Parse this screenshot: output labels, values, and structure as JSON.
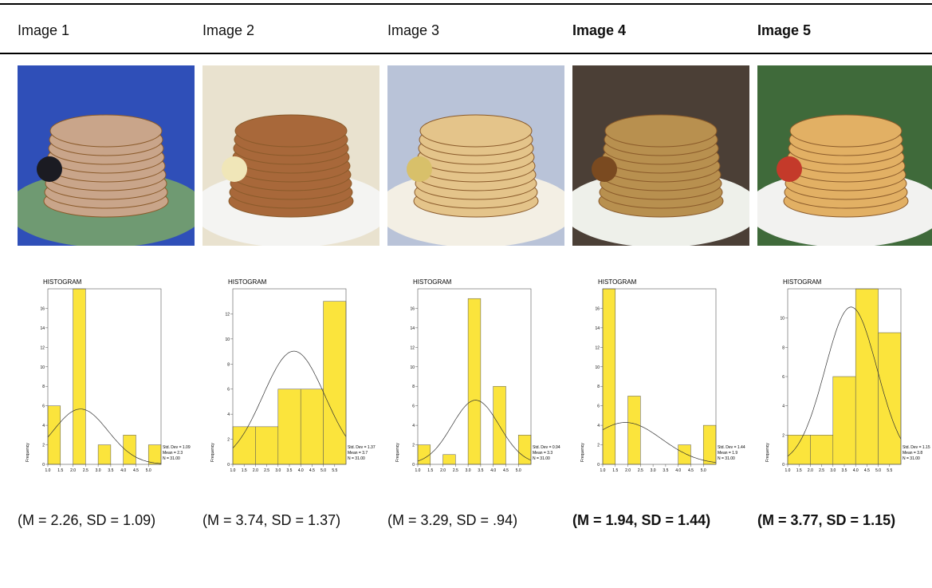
{
  "columns": [
    {
      "label": "Image 1",
      "bold": false,
      "caption": "(M = 2.26, SD = 1.09)",
      "histogram": {
        "type": "histogram",
        "title": "HISTOGRAM",
        "y_label": "Frequency",
        "color": "#fbe43c",
        "bins": [
          1.0,
          1.5,
          2.0,
          2.5,
          3.0,
          3.5,
          4.0,
          4.5,
          5.0,
          5.5
        ],
        "counts": [
          6,
          0,
          18,
          0,
          2,
          0,
          3,
          0,
          2
        ],
        "xlim": [
          1.0,
          5.5
        ],
        "ylim": [
          0,
          18
        ],
        "yticks": [
          0,
          2,
          4,
          6,
          8,
          10,
          12,
          14,
          16
        ],
        "xticks": [
          {
            "value": 1.0,
            "label": "1.0"
          },
          {
            "value": 1.5,
            "label": "1.5"
          },
          {
            "value": 2.0,
            "label": "2.0"
          },
          {
            "value": 2.5,
            "label": "2.5"
          },
          {
            "value": 3.0,
            "label": "3.0"
          },
          {
            "value": 3.5,
            "label": "3.5"
          },
          {
            "value": 4.0,
            "label": "4.0"
          },
          {
            "value": 4.5,
            "label": "4.5"
          },
          {
            "value": 5.0,
            "label": "5.0"
          }
        ],
        "stats": [
          {
            "value": 1.09,
            "label": "Std. Dev = 1.09"
          },
          {
            "value": 2.3,
            "label": "Mean = 2.3"
          },
          {
            "value": 31,
            "label": "N = 31.00"
          }
        ]
      }
    },
    {
      "label": "Image 2",
      "bold": false,
      "caption": "(M = 3.74, SD = 1.37)",
      "histogram": {
        "type": "histogram",
        "title": "HISTOGRAM",
        "y_label": "Frequency",
        "color": "#fbe43c",
        "bins": [
          1.0,
          2.0,
          3.0,
          4.0,
          5.0,
          6.0
        ],
        "counts": [
          3,
          3,
          6,
          6,
          13
        ],
        "xlim": [
          1.0,
          6.0
        ],
        "ylim": [
          0,
          14
        ],
        "yticks": [
          0,
          2,
          4,
          6,
          8,
          10,
          12
        ],
        "xticks": [
          {
            "value": 1.0,
            "label": "1.0"
          },
          {
            "value": 1.5,
            "label": "1.5"
          },
          {
            "value": 2.0,
            "label": "2.0"
          },
          {
            "value": 2.5,
            "label": "2.5"
          },
          {
            "value": 3.0,
            "label": "3.0"
          },
          {
            "value": 3.5,
            "label": "3.5"
          },
          {
            "value": 4.0,
            "label": "4.0"
          },
          {
            "value": 4.5,
            "label": "4.5"
          },
          {
            "value": 5.0,
            "label": "5.0"
          },
          {
            "value": 5.5,
            "label": "5.5"
          }
        ],
        "stats": [
          {
            "value": 1.37,
            "label": "Std. Dev = 1.37"
          },
          {
            "value": 3.7,
            "label": "Mean = 3.7"
          },
          {
            "value": 31,
            "label": "N = 31.00"
          }
        ]
      }
    },
    {
      "label": "Image 3",
      "bold": false,
      "caption": "(M = 3.29, SD = .94)",
      "histogram": {
        "type": "histogram",
        "title": "HISTOGRAM",
        "y_label": "Frequency",
        "color": "#fbe43c",
        "bins": [
          1.0,
          1.5,
          2.0,
          2.5,
          3.0,
          3.5,
          4.0,
          4.5,
          5.0,
          5.5
        ],
        "counts": [
          2,
          0,
          1,
          0,
          17,
          0,
          8,
          0,
          3
        ],
        "xlim": [
          1.0,
          5.5
        ],
        "ylim": [
          0,
          18
        ],
        "yticks": [
          0,
          2,
          4,
          6,
          8,
          10,
          12,
          14,
          16
        ],
        "xticks": [
          {
            "value": 1.0,
            "label": "1.0"
          },
          {
            "value": 1.5,
            "label": "1.5"
          },
          {
            "value": 2.0,
            "label": "2.0"
          },
          {
            "value": 2.5,
            "label": "2.5"
          },
          {
            "value": 3.0,
            "label": "3.0"
          },
          {
            "value": 3.5,
            "label": "3.5"
          },
          {
            "value": 4.0,
            "label": "4.0"
          },
          {
            "value": 4.5,
            "label": "4.5"
          },
          {
            "value": 5.0,
            "label": "5.0"
          }
        ],
        "stats": [
          {
            "value": 0.94,
            "label": "Std. Dev = 0.94"
          },
          {
            "value": 3.3,
            "label": "Mean = 3.3"
          },
          {
            "value": 31,
            "label": "N = 31.00"
          }
        ]
      }
    },
    {
      "label": "Image 4",
      "bold": true,
      "caption": "(M = 1.94, SD = 1.44)",
      "histogram": {
        "type": "histogram",
        "title": "HISTOGRAM",
        "y_label": "Frequency",
        "color": "#fbe43c",
        "bins": [
          1.0,
          1.5,
          2.0,
          2.5,
          3.0,
          3.5,
          4.0,
          4.5,
          5.0,
          5.5
        ],
        "counts": [
          18,
          0,
          7,
          0,
          0,
          0,
          2,
          0,
          4
        ],
        "xlim": [
          1.0,
          5.5
        ],
        "ylim": [
          0,
          18
        ],
        "yticks": [
          0,
          2,
          4,
          6,
          8,
          10,
          12,
          14,
          16
        ],
        "xticks": [
          {
            "value": 1.0,
            "label": "1.0"
          },
          {
            "value": 1.5,
            "label": "1.5"
          },
          {
            "value": 2.0,
            "label": "2.0"
          },
          {
            "value": 2.5,
            "label": "2.5"
          },
          {
            "value": 3.0,
            "label": "3.0"
          },
          {
            "value": 3.5,
            "label": "3.5"
          },
          {
            "value": 4.0,
            "label": "4.0"
          },
          {
            "value": 4.5,
            "label": "4.5"
          },
          {
            "value": 5.0,
            "label": "5.0"
          }
        ],
        "stats": [
          {
            "value": 1.44,
            "label": "Std. Dev = 1.44"
          },
          {
            "value": 1.9,
            "label": "Mean = 1.9"
          },
          {
            "value": 31,
            "label": "N = 31.00"
          }
        ]
      }
    },
    {
      "label": "Image 5",
      "bold": true,
      "caption": "(M = 3.77, SD = 1.15)",
      "histogram": {
        "type": "histogram",
        "title": "HISTOGRAM",
        "y_label": "Frequency",
        "color": "#fbe43c",
        "bins": [
          1.0,
          2.0,
          3.0,
          4.0,
          5.0,
          6.0
        ],
        "counts": [
          2,
          2,
          6,
          12,
          9
        ],
        "xlim": [
          1.0,
          6.0
        ],
        "ylim": [
          0,
          12
        ],
        "yticks": [
          0,
          2,
          4,
          6,
          8,
          10
        ],
        "xticks": [
          {
            "value": 1.0,
            "label": "1.0"
          },
          {
            "value": 1.5,
            "label": "1.5"
          },
          {
            "value": 2.0,
            "label": "2.0"
          },
          {
            "value": 2.5,
            "label": "2.5"
          },
          {
            "value": 3.0,
            "label": "3.0"
          },
          {
            "value": 3.5,
            "label": "3.5"
          },
          {
            "value": 4.0,
            "label": "4.0"
          },
          {
            "value": 4.5,
            "label": "4.5"
          },
          {
            "value": 5.0,
            "label": "5.0"
          },
          {
            "value": 5.5,
            "label": "5.5"
          }
        ],
        "stats": [
          {
            "value": 1.15,
            "label": "Std. Dev = 1.15"
          },
          {
            "value": 3.8,
            "label": "Mean = 3.8"
          },
          {
            "value": 31,
            "label": "N = 31.00"
          }
        ]
      }
    }
  ]
}
